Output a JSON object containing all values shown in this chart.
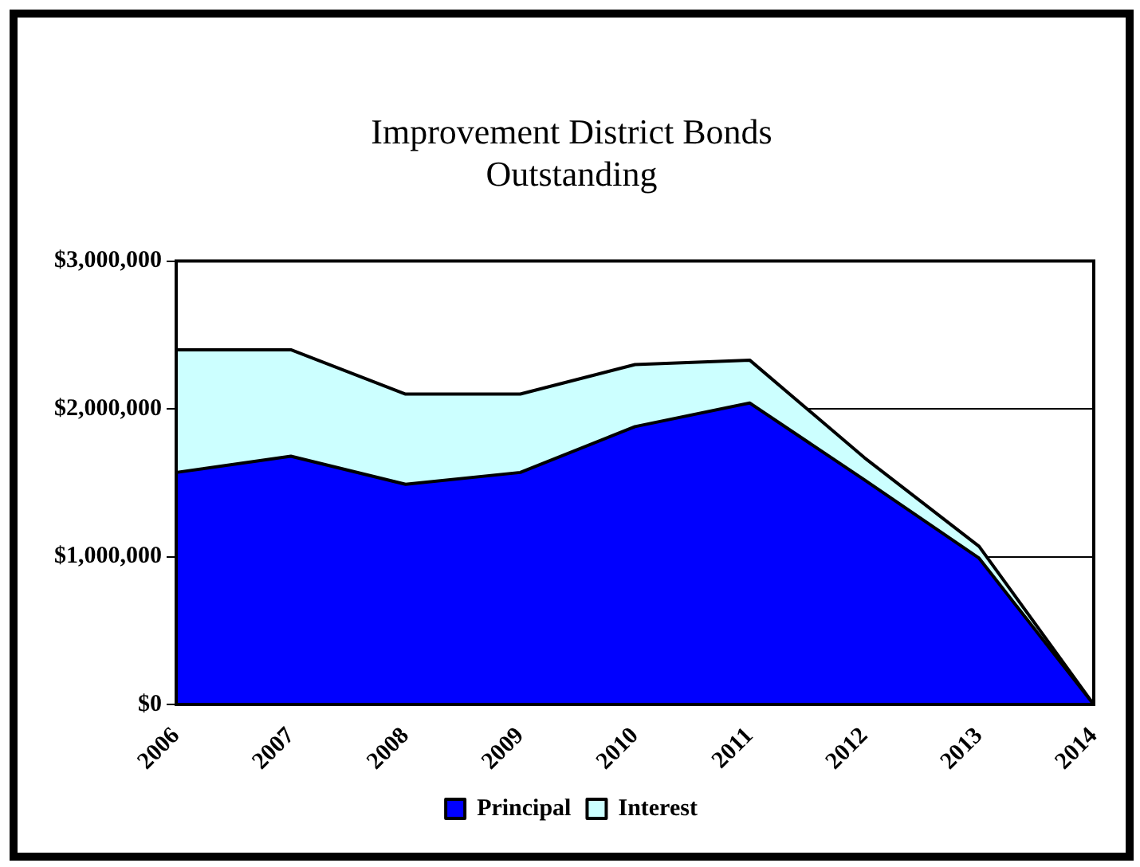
{
  "chart_data": {
    "type": "area",
    "title": [
      "Improvement District Bonds",
      "Outstanding"
    ],
    "categories": [
      "2006",
      "2007",
      "2008",
      "2009",
      "2010",
      "2011",
      "2012",
      "2013",
      "2014"
    ],
    "stacked": true,
    "series": [
      {
        "name": "Principal",
        "color": "#0000ff",
        "values": [
          1570000,
          1680000,
          1490000,
          1570000,
          1880000,
          2040000,
          1520000,
          990000,
          0
        ]
      },
      {
        "name": "Interest",
        "color": "#ccffff",
        "values": [
          830000,
          720000,
          610000,
          530000,
          420000,
          290000,
          150000,
          80000,
          0
        ]
      }
    ],
    "ylim": [
      0,
      3000000
    ],
    "yticks": [
      {
        "value": 0,
        "label": "$0"
      },
      {
        "value": 1000000,
        "label": "$1,000,000"
      },
      {
        "value": 2000000,
        "label": "$2,000,000"
      },
      {
        "value": 3000000,
        "label": "$3,000,000"
      }
    ],
    "grid": "y",
    "legend": "bottom"
  }
}
